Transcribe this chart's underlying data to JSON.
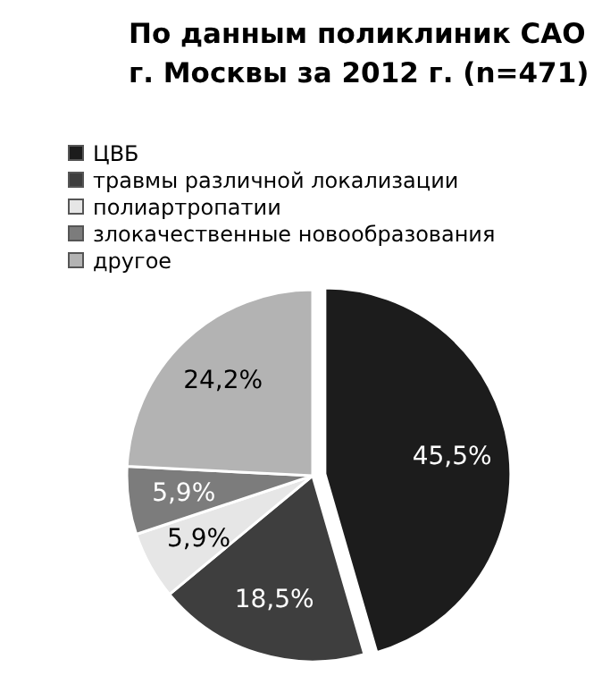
{
  "chart_data": {
    "type": "pie",
    "title": "По данным поликлиник САО\nг. Москвы за 2012 г. (n=471)",
    "categories": [
      "ЦВБ",
      "травмы различной локализации",
      "полиартропатии",
      "злокачественные новообразования",
      "другое"
    ],
    "values": [
      45.5,
      18.5,
      5.9,
      5.9,
      24.2
    ],
    "colors": [
      "#1c1c1c",
      "#3e3e3e",
      "#e6e6e6",
      "#7c7c7c",
      "#b3b3b3"
    ],
    "value_labels": [
      "45,5%",
      "18,5%",
      "5,9%",
      "5,9%",
      "24,2%"
    ],
    "legend": "top left"
  }
}
